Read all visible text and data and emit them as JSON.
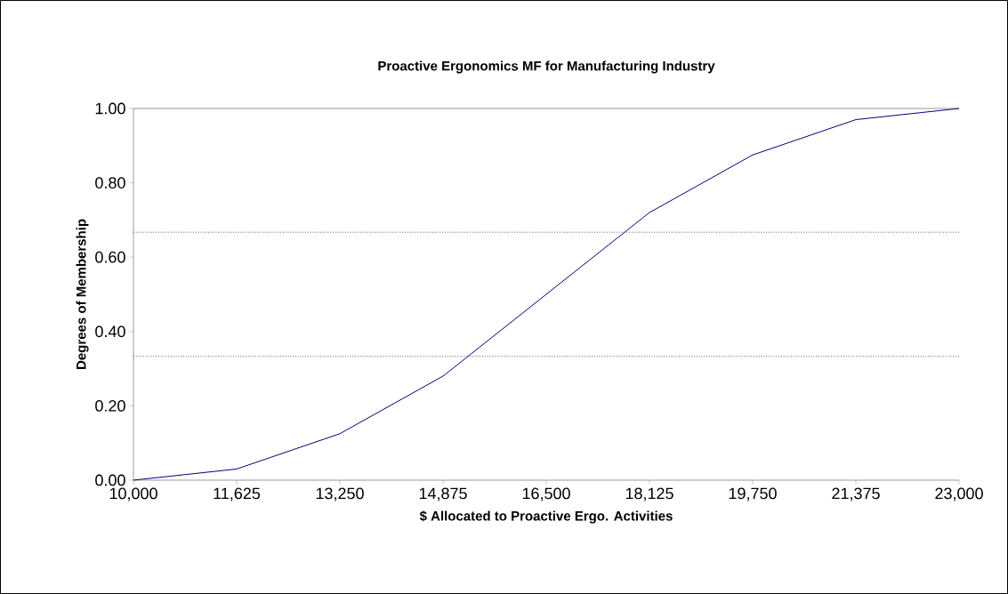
{
  "chart_data": {
    "type": "line",
    "title": "Proactive Ergonomics MF for Manufacturing Industry",
    "xlabel": "$ Allocated to Proactive Ergo. Activities",
    "ylabel": "Degrees of Membership",
    "x": [
      10000,
      11625,
      13250,
      14875,
      16500,
      18125,
      19750,
      21375,
      23000
    ],
    "series": [
      {
        "color": "#000080",
        "values": [
          0,
          0.03,
          0.125,
          0.28,
          0.5,
          0.72,
          0.875,
          0.97,
          1.0
        ]
      }
    ],
    "xlim": [
      10000,
      23000
    ],
    "xticks": [
      {
        "value": 10000,
        "label": "10,000"
      },
      {
        "value": 11625,
        "label": "11,625"
      },
      {
        "value": 13250,
        "label": "13,250"
      },
      {
        "value": 14875,
        "label": "14,875"
      },
      {
        "value": 16500,
        "label": "16,500"
      },
      {
        "value": 18125,
        "label": "18,125"
      },
      {
        "value": 19750,
        "label": "19,750"
      },
      {
        "value": 21375,
        "label": "21,375"
      },
      {
        "value": 23000,
        "label": "23,000"
      }
    ],
    "ylim": [
      0,
      1
    ],
    "yticks": [
      {
        "value": 0,
        "label": "0.00"
      },
      {
        "value": 0.2,
        "label": "0.20"
      },
      {
        "value": 0.4,
        "label": "0.40"
      },
      {
        "value": 0.6,
        "label": "0.60"
      },
      {
        "value": 0.8,
        "label": "0.80"
      },
      {
        "value": 1,
        "label": "1.00"
      }
    ],
    "ref_lines": [
      {
        "axis": "y",
        "value": 0.333,
        "line_style": "dotted",
        "color": "#000000"
      },
      {
        "axis": "y",
        "value": 0.667,
        "line_style": "dotted",
        "color": "#000000"
      },
      {
        "axis": "y",
        "value": 1,
        "line_style": "solid",
        "color": "#808080"
      }
    ],
    "grid": false,
    "marker": "none",
    "line_style": "solid"
  }
}
